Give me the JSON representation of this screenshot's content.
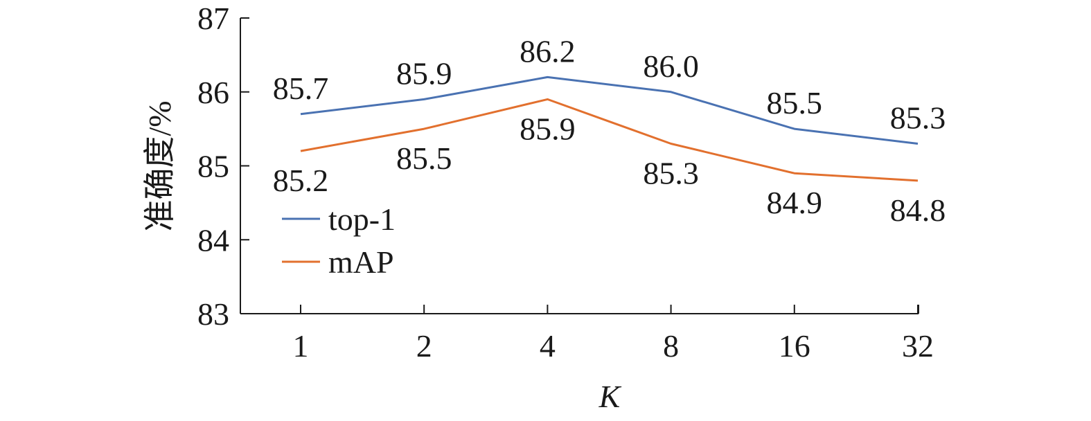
{
  "chart_data": {
    "type": "line",
    "xlabel": "K",
    "ylabel": "准确度/%",
    "categories": [
      "1",
      "2",
      "4",
      "8",
      "16",
      "32"
    ],
    "ylim": [
      83,
      87
    ],
    "yticks": [
      "83",
      "84",
      "85",
      "86",
      "87"
    ],
    "grid": false,
    "legend_position": "lower-left",
    "series": [
      {
        "name": "top-1",
        "color": "#4a72b2",
        "values": [
          85.7,
          85.9,
          86.2,
          86.0,
          85.5,
          85.3
        ],
        "labels": [
          "85.7",
          "85.9",
          "86.2",
          "86.0",
          "85.5",
          "85.3"
        ]
      },
      {
        "name": "mAP",
        "color": "#e2702e",
        "values": [
          85.2,
          85.5,
          85.9,
          85.3,
          84.9,
          84.8
        ],
        "labels": [
          "85.2",
          "85.5",
          "85.9",
          "85.3",
          "84.9",
          "84.8"
        ]
      }
    ]
  }
}
